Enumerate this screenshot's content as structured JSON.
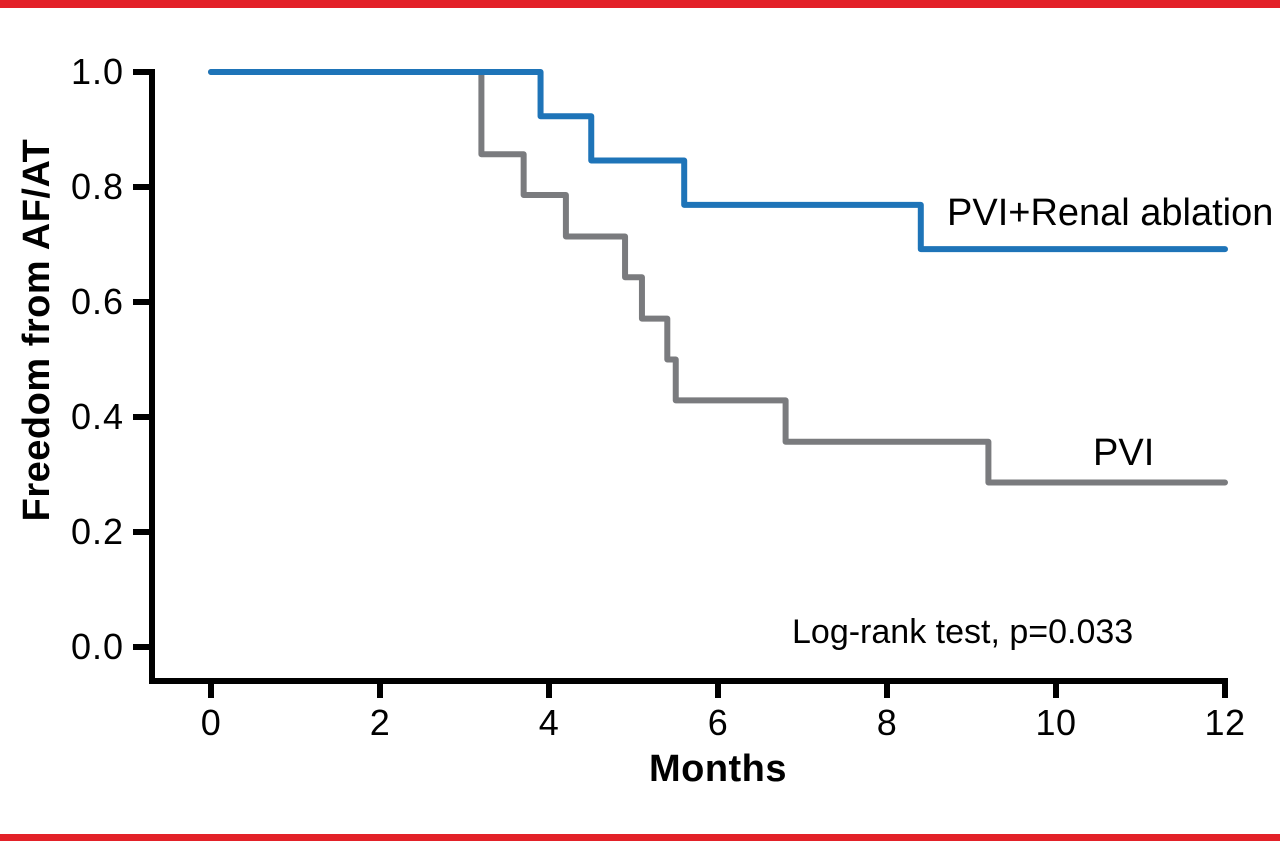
{
  "figure": {
    "background": "#ffffff",
    "border_color": "#e32128"
  },
  "chart_data": {
    "type": "line",
    "variant": "kaplan-meier-step",
    "title": "",
    "xlabel": "Months",
    "ylabel": "Freedom from AF/AT",
    "annotation": "Log-rank test, p=0.033",
    "xlim": [
      0,
      12
    ],
    "ylim": [
      0.0,
      1.0
    ],
    "grid": false,
    "legend_position": "labels-on-curves",
    "axis_color": "#000000",
    "xticks": [
      {
        "label": "0",
        "value": 0
      },
      {
        "label": "2",
        "value": 2
      },
      {
        "label": "4",
        "value": 4
      },
      {
        "label": "6",
        "value": 6
      },
      {
        "label": "8",
        "value": 8
      },
      {
        "label": "10",
        "value": 10
      },
      {
        "label": "12",
        "value": 12
      }
    ],
    "yticks": [
      {
        "label": "1.0",
        "value": 1.0
      },
      {
        "label": "0.8",
        "value": 0.8
      },
      {
        "label": "0.6",
        "value": 0.6
      },
      {
        "label": "0.4",
        "value": 0.4
      },
      {
        "label": "0.2",
        "value": 0.2
      },
      {
        "label": "0.0",
        "value": 0.0
      }
    ],
    "series": [
      {
        "name": "PVI+Renal ablation",
        "color": "#1e74b8",
        "points": [
          [
            0,
            1.0
          ],
          [
            3.9,
            1.0
          ],
          [
            3.9,
            0.923
          ],
          [
            4.5,
            0.923
          ],
          [
            4.5,
            0.846
          ],
          [
            5.6,
            0.846
          ],
          [
            5.6,
            0.769
          ],
          [
            8.4,
            0.769
          ],
          [
            8.4,
            0.692
          ],
          [
            12,
            0.692
          ]
        ]
      },
      {
        "name": "PVI",
        "color": "#7a7b7e",
        "points": [
          [
            0,
            1.0
          ],
          [
            3.2,
            1.0
          ],
          [
            3.2,
            0.857
          ],
          [
            3.7,
            0.857
          ],
          [
            3.7,
            0.786
          ],
          [
            4.2,
            0.786
          ],
          [
            4.2,
            0.714
          ],
          [
            4.9,
            0.714
          ],
          [
            4.9,
            0.643
          ],
          [
            5.1,
            0.643
          ],
          [
            5.1,
            0.571
          ],
          [
            5.4,
            0.571
          ],
          [
            5.4,
            0.5
          ],
          [
            5.5,
            0.5
          ],
          [
            5.5,
            0.429
          ],
          [
            6.8,
            0.429
          ],
          [
            6.8,
            0.357
          ],
          [
            9.2,
            0.357
          ],
          [
            9.2,
            0.286
          ],
          [
            12,
            0.286
          ]
        ]
      }
    ]
  }
}
